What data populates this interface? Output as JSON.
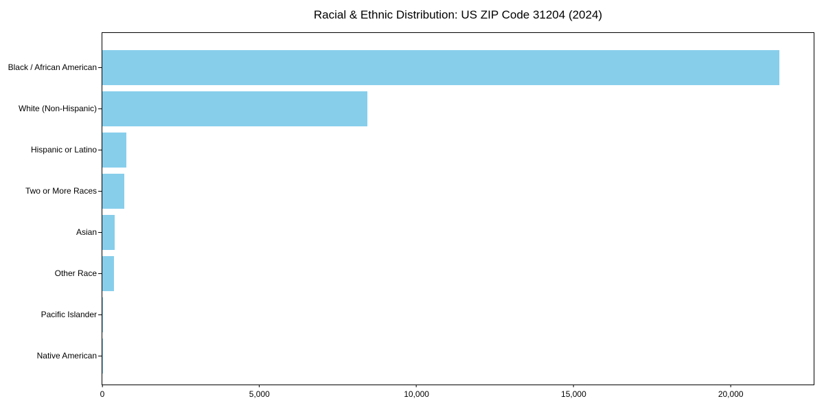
{
  "page": {
    "background": "#ffffff"
  },
  "chart_data": {
    "type": "bar",
    "orientation": "horizontal",
    "title": "Racial & Ethnic Distribution: US ZIP Code 31204 (2024)",
    "xlabel": "",
    "ylabel": "",
    "categories": [
      "Black / African American",
      "White (Non-Hispanic)",
      "Hispanic or Latino",
      "Two or More Races",
      "Asian",
      "Other Race",
      "Pacific Islander",
      "Native American"
    ],
    "values": [
      21550,
      8430,
      770,
      690,
      390,
      380,
      30,
      10
    ],
    "xlim": [
      0,
      22640
    ],
    "xticks": [
      0,
      5000,
      10000,
      15000,
      20000
    ],
    "xtick_labels": [
      "0",
      "5,000",
      "10,000",
      "15,000",
      "20,000"
    ],
    "bar_color": "#87CEEB",
    "axis_color": "#000000",
    "text_color": "#000000",
    "grid": false,
    "legend": "none"
  }
}
